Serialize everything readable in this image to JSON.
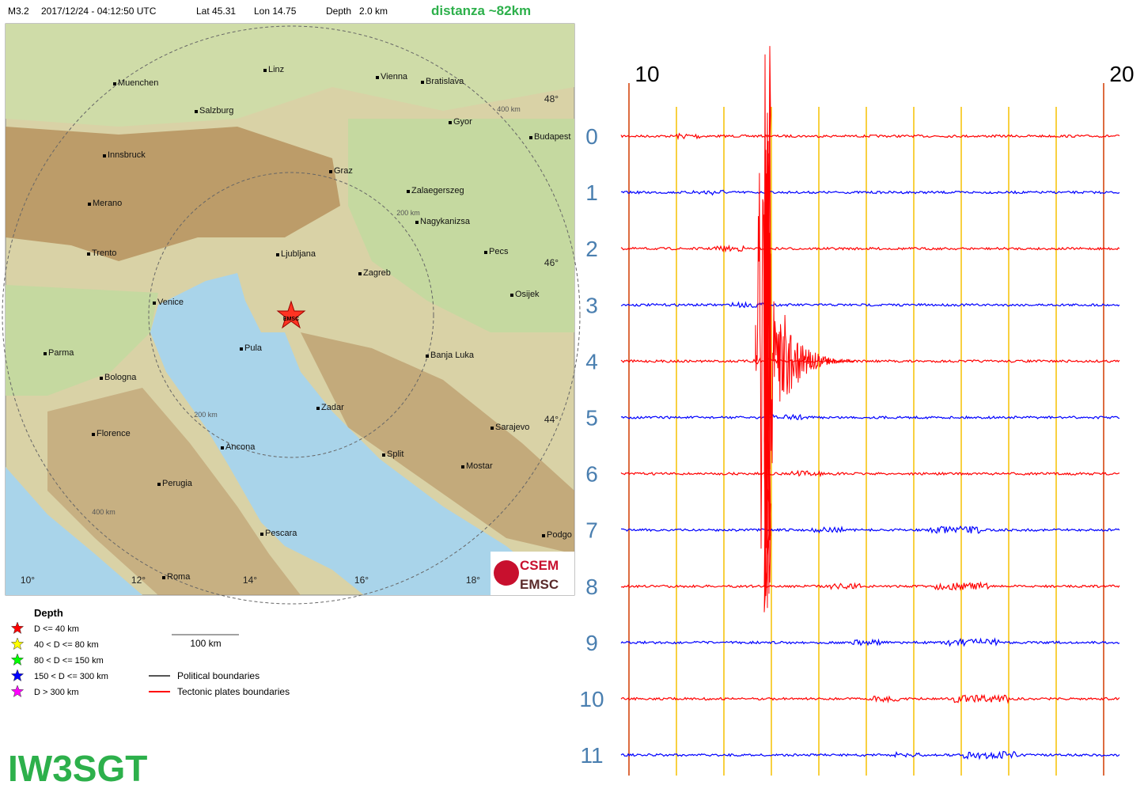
{
  "header": {
    "magnitude": "M3.2",
    "datetime": "2017/12/24 - 04:12:50 UTC",
    "lat": "Lat 45.31",
    "lon": "Lon 14.75",
    "depth": "Depth   2.0 km",
    "distance": "distanza ~82km"
  },
  "map": {
    "cities": [
      "Muenchen",
      "Linz",
      "Vienna",
      "Bratislava",
      "Salzburg",
      "Innsbruck",
      "Gyor",
      "Budapest",
      "Graz",
      "Zalaegerszeg",
      "Merano",
      "Nagykanizsa",
      "Trento",
      "Ljubljana",
      "Pecs",
      "Zagreb",
      "Venice",
      "Osijek",
      "Pula",
      "Parma",
      "Banja Luka",
      "Bologna",
      "Zadar",
      "Sarajevo",
      "Florence",
      "Ancona",
      "Split",
      "Mostar",
      "Perugia",
      "Pescara",
      "Roma",
      "Podgo"
    ],
    "lon_labels": [
      "10°",
      "12°",
      "14°",
      "16°",
      "18°"
    ],
    "lat_labels": [
      "48°",
      "46°",
      "44°"
    ],
    "ring_labels": [
      "400 km",
      "200 km",
      "200 km",
      "400 km"
    ],
    "epicenter_label": "EMSC",
    "logo": [
      "CSEM",
      "EMSC"
    ]
  },
  "legend": {
    "title": "Depth",
    "items": [
      {
        "label": "D <= 40 km",
        "color": "#ff0000"
      },
      {
        "label": "40 < D <= 80 km",
        "color": "#ffff00"
      },
      {
        "label": "80 < D <= 150 km",
        "color": "#00ff00"
      },
      {
        "label": "150 < D <= 300 km",
        "color": "#0000ff"
      },
      {
        "label": "D > 300 km",
        "color": "#ff00ff"
      }
    ],
    "scale": "100 km",
    "lines": [
      {
        "label": "Political boundaries",
        "color": "#555555"
      },
      {
        "label": "Tectonic plates boundaries",
        "color": "#ff0000"
      }
    ]
  },
  "callsign": "IW3SGT",
  "seismogram": {
    "time_labels": [
      "10",
      "20"
    ],
    "rows": [
      {
        "label": "0",
        "color": "#ff0000"
      },
      {
        "label": "1",
        "color": "#0000ff"
      },
      {
        "label": "2",
        "color": "#ff0000"
      },
      {
        "label": "3",
        "color": "#0000ff"
      },
      {
        "label": "4",
        "color": "#ff0000"
      },
      {
        "label": "5",
        "color": "#0000ff"
      },
      {
        "label": "6",
        "color": "#ff0000"
      },
      {
        "label": "7",
        "color": "#0000ff"
      },
      {
        "label": "8",
        "color": "#ff0000"
      },
      {
        "label": "9",
        "color": "#0000ff"
      },
      {
        "label": "10",
        "color": "#ff0000"
      },
      {
        "label": "11",
        "color": "#0000ff"
      }
    ]
  }
}
